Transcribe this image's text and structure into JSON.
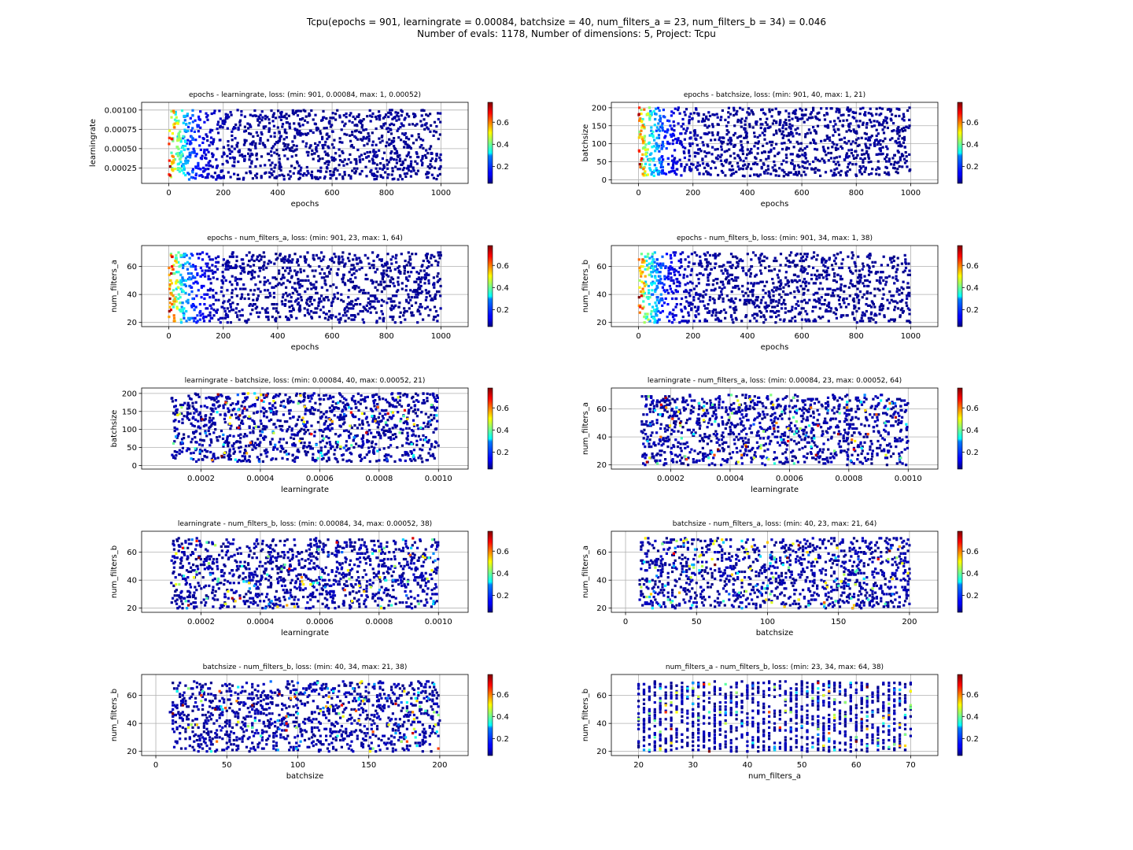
{
  "figure": {
    "title": "Tcpu(epochs = 901, learningrate = 0.00084, batchsize = 40, num_filters_a = 23, num_filters_b = 34) = 0.046",
    "subtitle": "Number of evals: 1178, Number of dimensions: 5, Project: Tcpu"
  },
  "colorbar": {
    "cmap": "jet",
    "min": 0.046,
    "max": 0.78,
    "ticks": [
      "0.2",
      "0.4",
      "0.6"
    ],
    "tick_values": [
      0.2,
      0.4,
      0.6
    ]
  },
  "chart_data": [
    {
      "type": "scatter",
      "title": "epochs - learningrate, loss:  (min: 901, 0.00084, max: 1, 0.00052)",
      "xlabel": "epochs",
      "ylabel": "learningrate",
      "xlim": [
        -100,
        1100
      ],
      "ylim": [
        5e-05,
        0.0011
      ],
      "xticks": [
        0,
        200,
        400,
        600,
        800,
        1000
      ],
      "xtick_labels": [
        "0",
        "200",
        "400",
        "600",
        "800",
        "1000"
      ],
      "yticks": [
        0.00025,
        0.0005,
        0.00075,
        0.001
      ],
      "ytick_labels": [
        "0.00025",
        "0.00050",
        "0.00075",
        "0.00100"
      ],
      "x_range": [
        1,
        1000
      ],
      "y_range": [
        0.0001,
        0.001
      ],
      "x_int": true,
      "y_int": false,
      "min_point": [
        901,
        0.00084
      ],
      "max_point": [
        1,
        0.00052
      ],
      "n_points": 1178
    },
    {
      "type": "scatter",
      "title": "epochs - batchsize, loss:  (min: 901, 40, max: 1, 21)",
      "xlabel": "epochs",
      "ylabel": "batchsize",
      "xlim": [
        -100,
        1100
      ],
      "ylim": [
        -10,
        215
      ],
      "xticks": [
        0,
        200,
        400,
        600,
        800,
        1000
      ],
      "xtick_labels": [
        "0",
        "200",
        "400",
        "600",
        "800",
        "1000"
      ],
      "yticks": [
        0,
        50,
        100,
        150,
        200
      ],
      "ytick_labels": [
        "0",
        "50",
        "100",
        "150",
        "200"
      ],
      "x_range": [
        1,
        1000
      ],
      "y_range": [
        10,
        200
      ],
      "x_int": true,
      "y_int": true,
      "min_point": [
        901,
        40
      ],
      "max_point": [
        1,
        21
      ],
      "n_points": 1178
    },
    {
      "type": "scatter",
      "title": "epochs - num_filters_a, loss:  (min: 901, 23, max: 1, 64)",
      "xlabel": "epochs",
      "ylabel": "num_filters_a",
      "xlim": [
        -100,
        1100
      ],
      "ylim": [
        17,
        75
      ],
      "xticks": [
        0,
        200,
        400,
        600,
        800,
        1000
      ],
      "xtick_labels": [
        "0",
        "200",
        "400",
        "600",
        "800",
        "1000"
      ],
      "yticks": [
        20,
        40,
        60
      ],
      "ytick_labels": [
        "20",
        "40",
        "60"
      ],
      "x_range": [
        1,
        1000
      ],
      "y_range": [
        20,
        70
      ],
      "x_int": true,
      "y_int": true,
      "min_point": [
        901,
        23
      ],
      "max_point": [
        1,
        64
      ],
      "n_points": 1178
    },
    {
      "type": "scatter",
      "title": "epochs - num_filters_b, loss:  (min: 901, 34, max: 1, 38)",
      "xlabel": "epochs",
      "ylabel": "num_filters_b",
      "xlim": [
        -100,
        1100
      ],
      "ylim": [
        17,
        75
      ],
      "xticks": [
        0,
        200,
        400,
        600,
        800,
        1000
      ],
      "xtick_labels": [
        "0",
        "200",
        "400",
        "600",
        "800",
        "1000"
      ],
      "yticks": [
        20,
        40,
        60
      ],
      "ytick_labels": [
        "20",
        "40",
        "60"
      ],
      "x_range": [
        1,
        1000
      ],
      "y_range": [
        20,
        70
      ],
      "x_int": true,
      "y_int": true,
      "min_point": [
        901,
        34
      ],
      "max_point": [
        1,
        38
      ],
      "n_points": 1178
    },
    {
      "type": "scatter",
      "title": "learningrate - batchsize, loss:  (min: 0.00084, 40, max: 0.00052, 21)",
      "xlabel": "learningrate",
      "ylabel": "batchsize",
      "xlim": [
        0.0,
        0.0011
      ],
      "ylim": [
        -10,
        215
      ],
      "xticks": [
        0.0002,
        0.0004,
        0.0006,
        0.0008,
        0.001
      ],
      "xtick_labels": [
        "0.0002",
        "0.0004",
        "0.0006",
        "0.0008",
        "0.0010"
      ],
      "yticks": [
        0,
        50,
        100,
        150,
        200
      ],
      "ytick_labels": [
        "0",
        "50",
        "100",
        "150",
        "200"
      ],
      "x_range": [
        0.0001,
        0.001
      ],
      "y_range": [
        10,
        200
      ],
      "x_int": false,
      "y_int": true,
      "min_point": [
        0.00084,
        40
      ],
      "max_point": [
        0.00052,
        21
      ],
      "n_points": 1178
    },
    {
      "type": "scatter",
      "title": "learningrate - num_filters_a, loss:  (min: 0.00084, 23, max: 0.00052, 64)",
      "xlabel": "learningrate",
      "ylabel": "num_filters_a",
      "xlim": [
        0.0,
        0.0011
      ],
      "ylim": [
        17,
        75
      ],
      "xticks": [
        0.0002,
        0.0004,
        0.0006,
        0.0008,
        0.001
      ],
      "xtick_labels": [
        "0.0002",
        "0.0004",
        "0.0006",
        "0.0008",
        "0.0010"
      ],
      "yticks": [
        20,
        40,
        60
      ],
      "ytick_labels": [
        "20",
        "40",
        "60"
      ],
      "x_range": [
        0.0001,
        0.001
      ],
      "y_range": [
        20,
        70
      ],
      "x_int": false,
      "y_int": true,
      "min_point": [
        0.00084,
        23
      ],
      "max_point": [
        0.00052,
        64
      ],
      "n_points": 1178
    },
    {
      "type": "scatter",
      "title": "learningrate - num_filters_b, loss:  (min: 0.00084, 34, max: 0.00052, 38)",
      "xlabel": "learningrate",
      "ylabel": "num_filters_b",
      "xlim": [
        0.0,
        0.0011
      ],
      "ylim": [
        17,
        75
      ],
      "xticks": [
        0.0002,
        0.0004,
        0.0006,
        0.0008,
        0.001
      ],
      "xtick_labels": [
        "0.0002",
        "0.0004",
        "0.0006",
        "0.0008",
        "0.0010"
      ],
      "yticks": [
        20,
        40,
        60
      ],
      "ytick_labels": [
        "20",
        "40",
        "60"
      ],
      "x_range": [
        0.0001,
        0.001
      ],
      "y_range": [
        20,
        70
      ],
      "x_int": false,
      "y_int": true,
      "min_point": [
        0.00084,
        34
      ],
      "max_point": [
        0.00052,
        38
      ],
      "n_points": 1178
    },
    {
      "type": "scatter",
      "title": "batchsize - num_filters_a, loss:  (min: 40, 23, max: 21, 64)",
      "xlabel": "batchsize",
      "ylabel": "num_filters_a",
      "xlim": [
        -10,
        220
      ],
      "ylim": [
        17,
        75
      ],
      "xticks": [
        0,
        50,
        100,
        150,
        200
      ],
      "xtick_labels": [
        "0",
        "50",
        "100",
        "150",
        "200"
      ],
      "yticks": [
        20,
        40,
        60
      ],
      "ytick_labels": [
        "20",
        "40",
        "60"
      ],
      "x_range": [
        10,
        200
      ],
      "y_range": [
        20,
        70
      ],
      "x_int": true,
      "y_int": true,
      "min_point": [
        40,
        23
      ],
      "max_point": [
        21,
        64
      ],
      "n_points": 1178
    },
    {
      "type": "scatter",
      "title": "batchsize - num_filters_b, loss:  (min: 40, 34, max: 21, 38)",
      "xlabel": "batchsize",
      "ylabel": "num_filters_b",
      "xlim": [
        -10,
        220
      ],
      "ylim": [
        17,
        75
      ],
      "xticks": [
        0,
        50,
        100,
        150,
        200
      ],
      "xtick_labels": [
        "0",
        "50",
        "100",
        "150",
        "200"
      ],
      "yticks": [
        20,
        40,
        60
      ],
      "ytick_labels": [
        "20",
        "40",
        "60"
      ],
      "x_range": [
        10,
        200
      ],
      "y_range": [
        20,
        70
      ],
      "x_int": true,
      "y_int": true,
      "min_point": [
        40,
        34
      ],
      "max_point": [
        21,
        38
      ],
      "n_points": 1178
    },
    {
      "type": "scatter",
      "title": "num_filters_a - num_filters_b, loss:  (min: 23, 34, max: 64, 38)",
      "xlabel": "num_filters_a",
      "ylabel": "num_filters_b",
      "xlim": [
        15,
        75
      ],
      "ylim": [
        17,
        75
      ],
      "xticks": [
        20,
        30,
        40,
        50,
        60,
        70
      ],
      "xtick_labels": [
        "20",
        "30",
        "40",
        "50",
        "60",
        "70"
      ],
      "yticks": [
        20,
        40,
        60
      ],
      "ytick_labels": [
        "20",
        "40",
        "60"
      ],
      "x_range": [
        20,
        70
      ],
      "y_range": [
        20,
        70
      ],
      "x_int": true,
      "y_int": true,
      "min_point": [
        23,
        34
      ],
      "max_point": [
        64,
        38
      ],
      "n_points": 1178
    }
  ]
}
